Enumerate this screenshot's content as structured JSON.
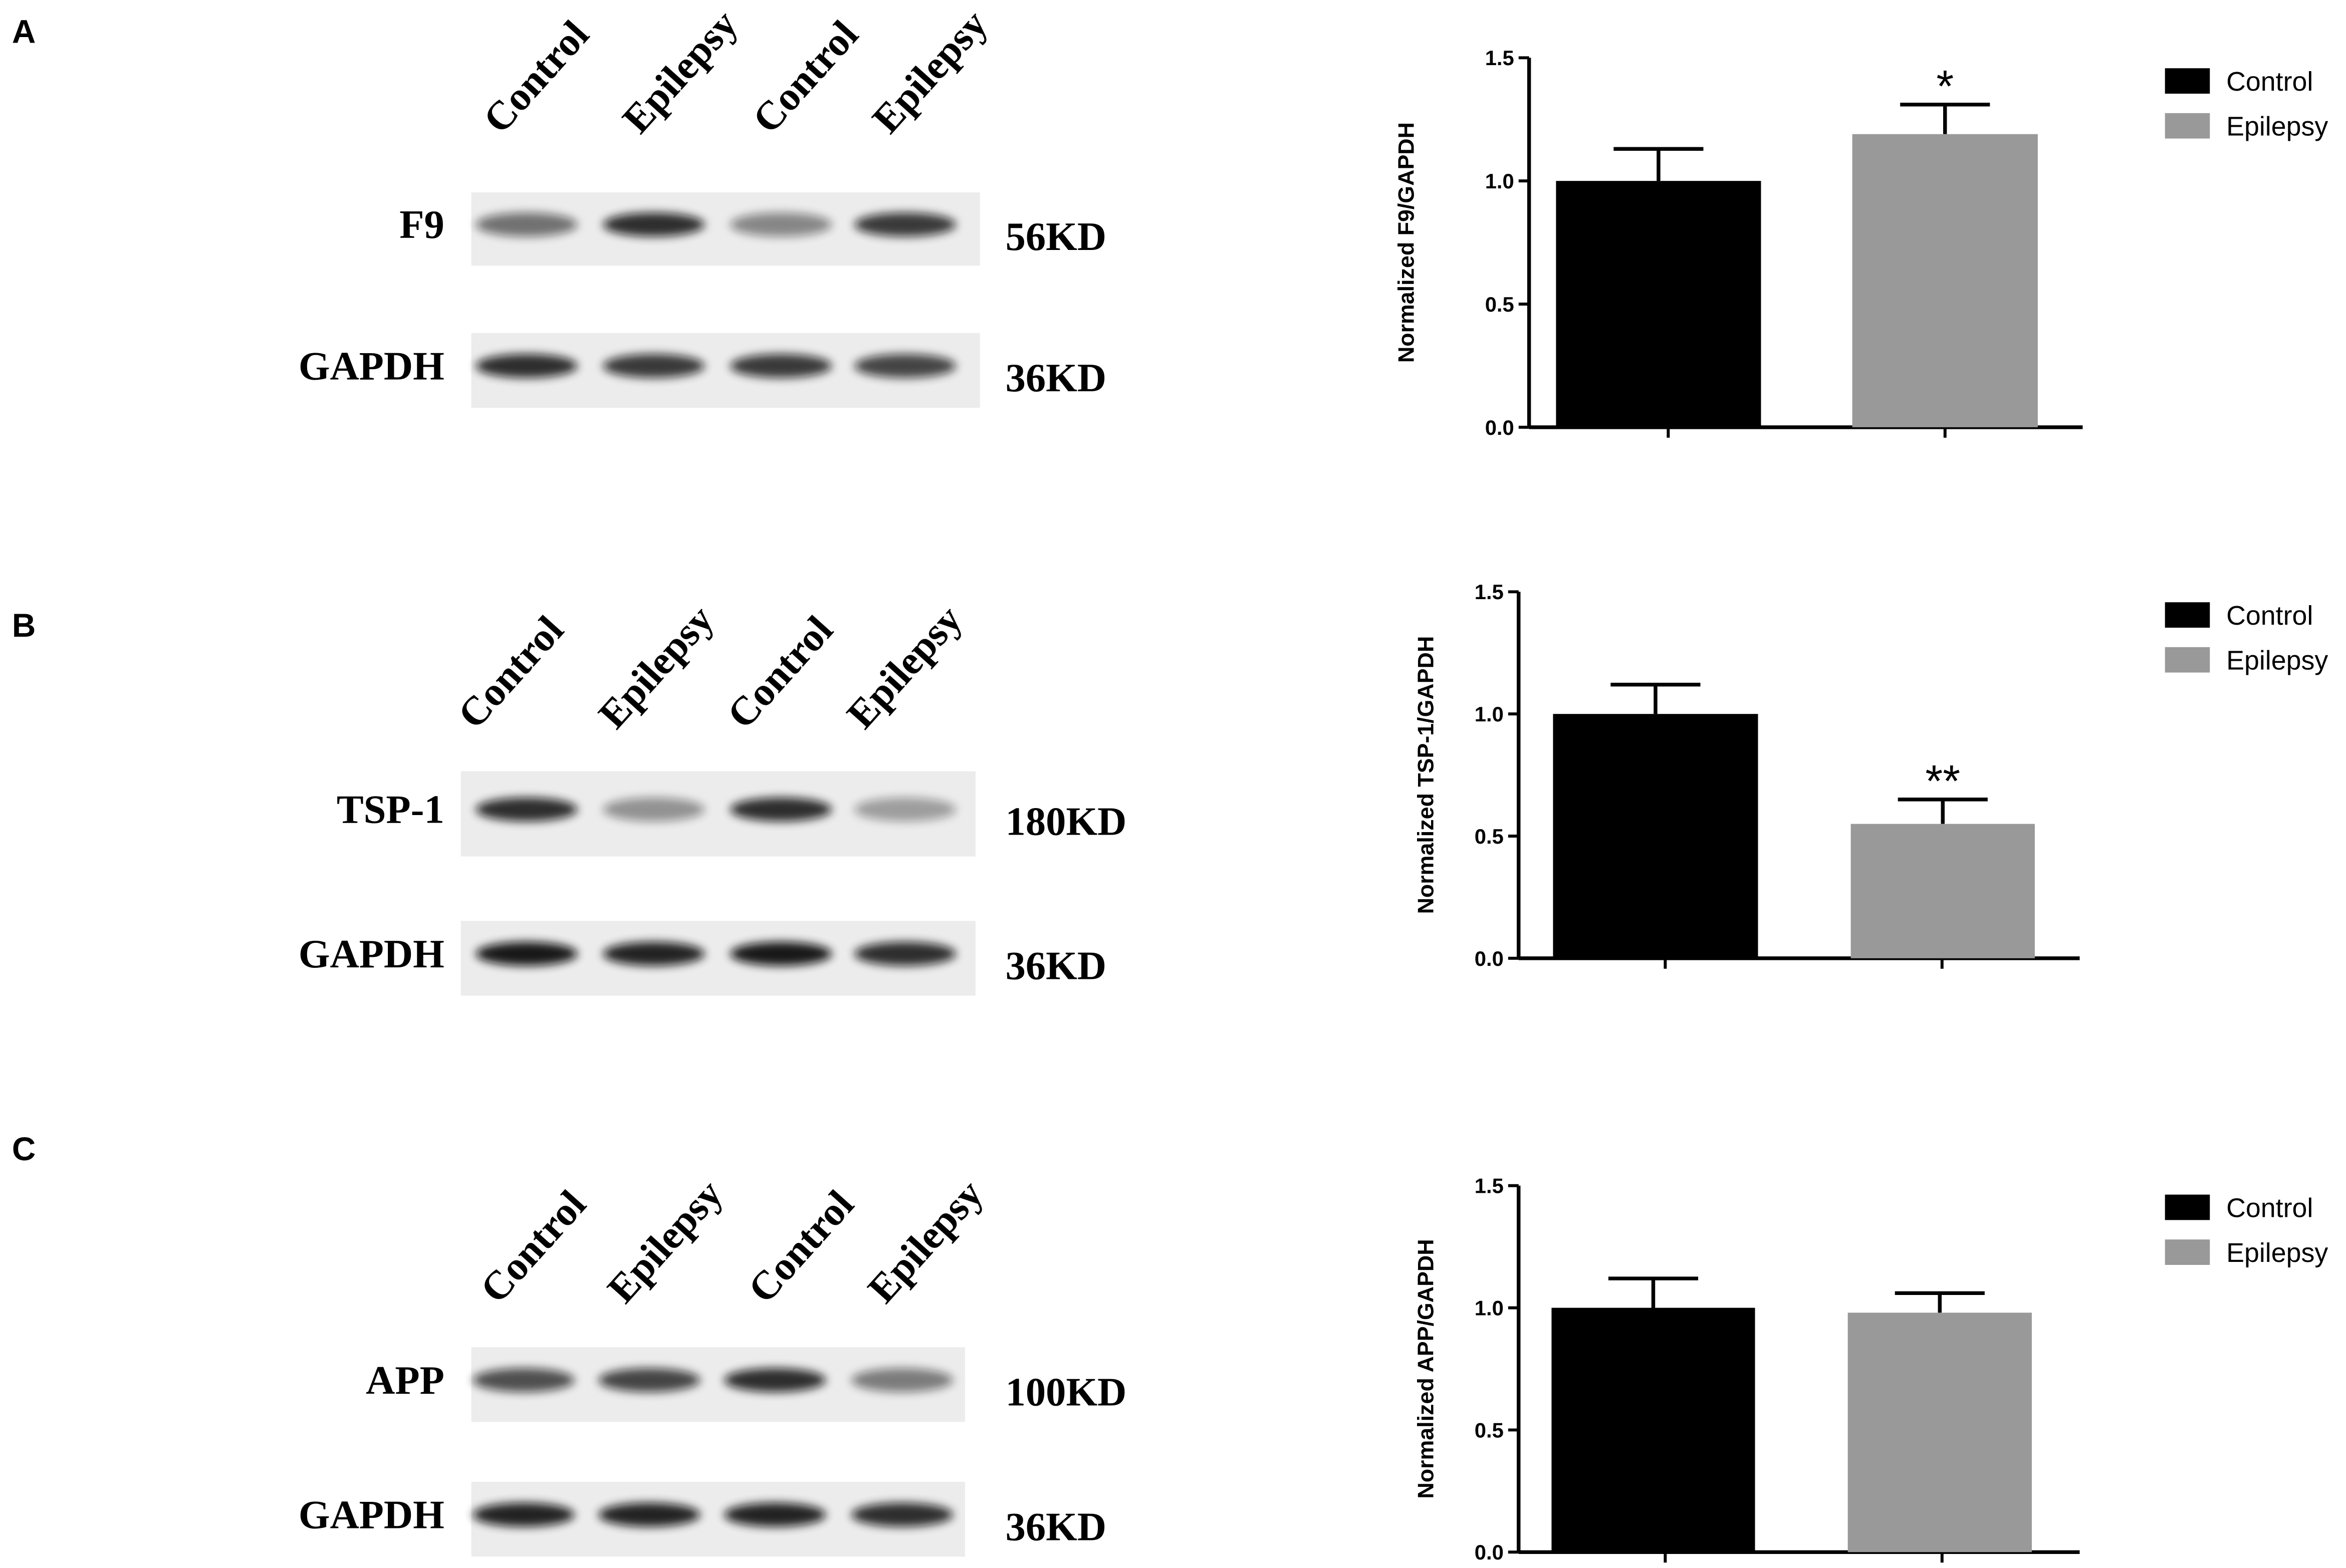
{
  "panels": [
    {
      "label": "A",
      "lanes": [
        "Control",
        "Epilepsy",
        "Control",
        "Epilepsy"
      ],
      "blots": [
        {
          "protein": "F9",
          "size": "56KD"
        },
        {
          "protein": "GAPDH",
          "size": "36KD"
        }
      ]
    },
    {
      "label": "B",
      "lanes": [
        "Control",
        "Epilepsy",
        "Control",
        "Epilepsy"
      ],
      "blots": [
        {
          "protein": "TSP-1",
          "size": "180KD"
        },
        {
          "protein": "GAPDH",
          "size": "36KD"
        }
      ]
    },
    {
      "label": "C",
      "lanes": [
        "Control",
        "Epilepsy",
        "Control",
        "Epilepsy"
      ],
      "blots": [
        {
          "protein": "APP",
          "size": "100KD"
        },
        {
          "protein": "GAPDH",
          "size": "36KD"
        }
      ]
    }
  ],
  "chart_data": [
    {
      "type": "bar",
      "y_label": "Normalized  F9/GAPDH",
      "categories": [
        null
      ],
      "series": [
        {
          "name": "Control",
          "color": "#000000",
          "values": [
            1.0
          ],
          "errors": [
            0.13
          ]
        },
        {
          "name": "Epilepsy",
          "color": "#999999",
          "values": [
            1.19
          ],
          "errors": [
            0.12
          ],
          "annotation": "*"
        }
      ],
      "ylim": [
        0,
        1.5
      ],
      "yticks": [
        {
          "value": 0,
          "label": "0.0"
        },
        {
          "value": 0.5,
          "label": "0.5"
        },
        {
          "value": 1,
          "label": "1.0"
        },
        {
          "value": 1.5,
          "label": "1.5"
        }
      ],
      "legend": "right"
    },
    {
      "type": "bar",
      "y_label": "Normalized TSP-1/GAPDH",
      "categories": [
        null
      ],
      "series": [
        {
          "name": "Control",
          "color": "#000000",
          "values": [
            1.0
          ],
          "errors": [
            0.12
          ]
        },
        {
          "name": "Epilepsy",
          "color": "#999999",
          "values": [
            0.55
          ],
          "errors": [
            0.1
          ],
          "annotation": "**"
        }
      ],
      "ylim": [
        0,
        1.5
      ],
      "yticks": [
        {
          "value": 0,
          "label": "0.0"
        },
        {
          "value": 0.5,
          "label": "0.5"
        },
        {
          "value": 1,
          "label": "1.0"
        },
        {
          "value": 1.5,
          "label": "1.5"
        }
      ],
      "legend": "right"
    },
    {
      "type": "bar",
      "y_label": "Normalized APP/GAPDH",
      "categories": [
        null
      ],
      "series": [
        {
          "name": "Control",
          "color": "#000000",
          "values": [
            1.0
          ],
          "errors": [
            0.12
          ]
        },
        {
          "name": "Epilepsy",
          "color": "#999999",
          "values": [
            0.98
          ],
          "errors": [
            0.08
          ]
        }
      ],
      "ylim": [
        0,
        1.5
      ],
      "yticks": [
        {
          "value": 0,
          "label": "0.0"
        },
        {
          "value": 0.5,
          "label": "0.5"
        },
        {
          "value": 1,
          "label": "1.0"
        },
        {
          "value": 1.5,
          "label": "1.5"
        }
      ],
      "legend": "right"
    }
  ]
}
